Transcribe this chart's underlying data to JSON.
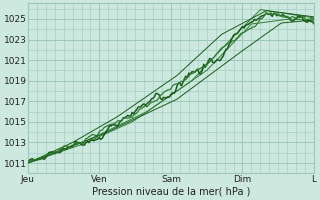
{
  "bg_color": "#cce8df",
  "grid_color": "#9dc8bc",
  "dark_green": "#1a5c1a",
  "mid_green": "#2e7d2e",
  "light_green": "#4a9e4a",
  "xlabel": "Pression niveau de la mer( hPa )",
  "yticks": [
    1011,
    1013,
    1015,
    1017,
    1019,
    1021,
    1023,
    1025
  ],
  "xtick_labels": [
    "Jeu",
    "Ven",
    "Sam",
    "Dim",
    "L"
  ],
  "xtick_positions": [
    0,
    24,
    48,
    72,
    96
  ],
  "xlim": [
    0,
    96
  ],
  "ylim": [
    1010.0,
    1026.5
  ],
  "num_points": 193
}
